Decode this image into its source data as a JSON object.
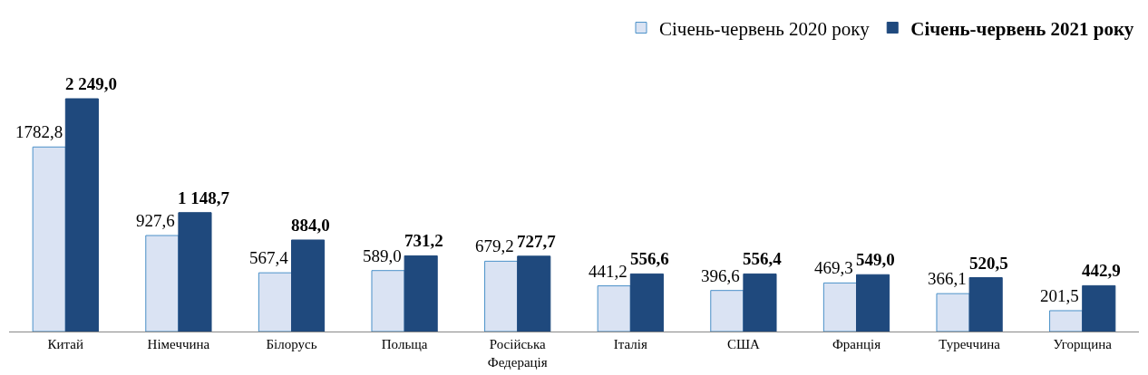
{
  "chart_data": {
    "type": "bar",
    "categories": [
      "Китай",
      "Німеччина",
      "Білорусь",
      "Польща",
      "Російська Федерація",
      "Італія",
      "США",
      "Франція",
      "Туреччина",
      "Угорщина"
    ],
    "series": [
      {
        "name": "Січень-червень 2020 року",
        "color": "#dae3f3",
        "values": [
          1782.8,
          927.6,
          567.4,
          589.0,
          679.2,
          441.2,
          396.6,
          469.3,
          366.1,
          201.5
        ],
        "value_labels": [
          "1782,8",
          "927,6",
          "567,4",
          "589,0",
          "679,2",
          "441,2",
          "396,6",
          "469,3",
          "366,1",
          "201,5"
        ]
      },
      {
        "name": "Січень-червень 2021 року",
        "color": "#1f497d",
        "values": [
          2249.0,
          1148.7,
          884.0,
          731.2,
          727.7,
          556.6,
          556.4,
          549.0,
          520.5,
          442.9
        ],
        "value_labels": [
          "2 249,0",
          "1 148,7",
          "884,0",
          "731,2",
          "727,7",
          "556,6",
          "556,4",
          "549,0",
          "520,5",
          "442,9"
        ]
      }
    ],
    "legend": "top right"
  }
}
